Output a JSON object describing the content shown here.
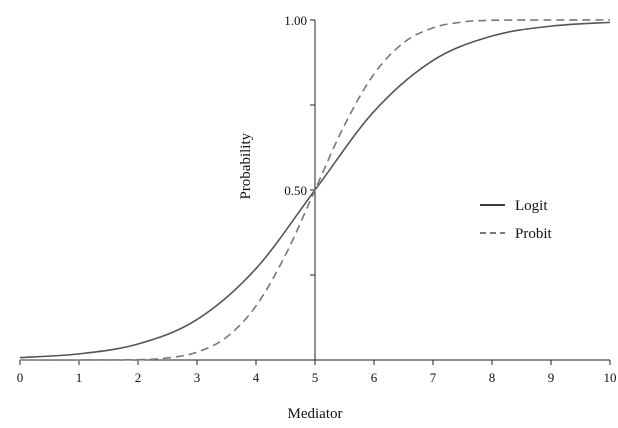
{
  "chart_data": {
    "type": "line",
    "title": "",
    "xlabel": "Mediator",
    "ylabel": "Probability",
    "xlim": [
      0,
      10
    ],
    "ylim": [
      0,
      1
    ],
    "x_ticks": [
      "0",
      "1",
      "2",
      "3",
      "4",
      "5",
      "6",
      "7",
      "8",
      "9",
      "10"
    ],
    "y_ticks": [
      "0.50",
      "1.00"
    ],
    "y_axis_crosses_x_at": 5,
    "grid": false,
    "legend_position": "right",
    "series": [
      {
        "name": "Logit",
        "line_style": "solid",
        "color": "#555555",
        "x": [
          0,
          1,
          2,
          3,
          4,
          5,
          6,
          7,
          8,
          9,
          10
        ],
        "y": [
          0.007,
          0.018,
          0.047,
          0.119,
          0.269,
          0.5,
          0.731,
          0.881,
          0.953,
          0.982,
          0.993
        ]
      },
      {
        "name": "Probit",
        "line_style": "dashed",
        "color": "#777777",
        "x": [
          0,
          1,
          2,
          2.5,
          3,
          3.5,
          4,
          4.5,
          5,
          5.5,
          6,
          6.5,
          7,
          7.5,
          8,
          9,
          10
        ],
        "y": [
          0,
          0,
          0.001,
          0.006,
          0.023,
          0.067,
          0.159,
          0.309,
          0.5,
          0.691,
          0.841,
          0.933,
          0.977,
          0.994,
          0.999,
          1,
          1
        ]
      }
    ]
  }
}
